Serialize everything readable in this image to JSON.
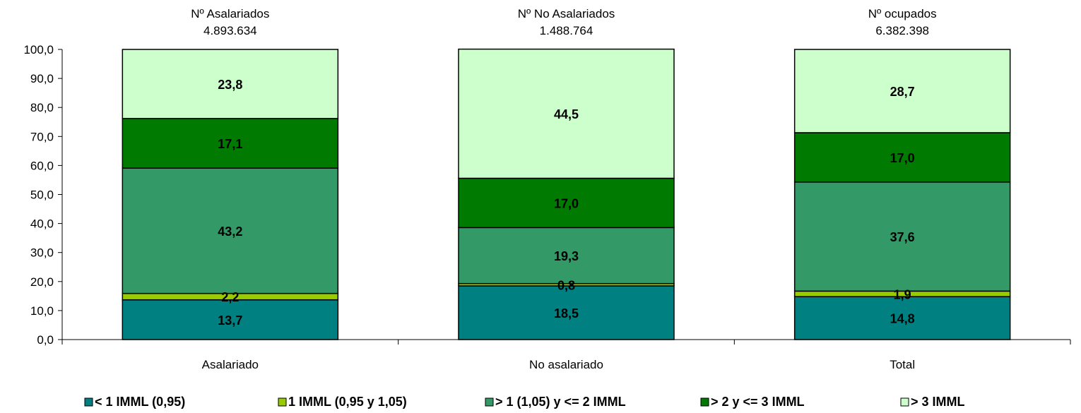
{
  "chart_data": {
    "type": "bar",
    "stacked": true,
    "categories": [
      "Asalariado",
      "No asalariado",
      "Total"
    ],
    "top_labels": [
      {
        "title": "Nº Asalariados",
        "count": "4.893.634"
      },
      {
        "title": "Nº No Asalariados",
        "count": "1.488.764"
      },
      {
        "title": "Nº ocupados",
        "count": "6.382.398"
      }
    ],
    "ylim": [
      0,
      100
    ],
    "yticks": [
      "0,0",
      "10,0",
      "20,0",
      "30,0",
      "40,0",
      "50,0",
      "60,0",
      "70,0",
      "80,0",
      "90,0",
      "100,0"
    ],
    "grid": false,
    "legend_position": "bottom",
    "series": [
      {
        "name": "< 1 IMML (0,95)",
        "color": "#008080",
        "values": [
          13.7,
          18.5,
          14.8
        ],
        "labels": [
          "13,7",
          "18,5",
          "14,8"
        ]
      },
      {
        "name": "1 IMML (0,95 y 1,05)",
        "color": "#99CC00",
        "values": [
          2.2,
          0.8,
          1.9
        ],
        "labels": [
          "2,2",
          "0,8",
          "1,9"
        ]
      },
      {
        "name": "> 1 (1,05) y <= 2 IMML",
        "color": "#339966",
        "values": [
          43.2,
          19.3,
          37.6
        ],
        "labels": [
          "43,2",
          "19,3",
          "37,6"
        ]
      },
      {
        "name": "> 2 y <= 3 IMML",
        "color": "#007A00",
        "values": [
          17.1,
          17.0,
          17.0
        ],
        "labels": [
          "17,1",
          "17,0",
          "17,0"
        ]
      },
      {
        "name": "> 3 IMML",
        "color": "#CCFFCC",
        "values": [
          23.8,
          44.5,
          28.7
        ],
        "labels": [
          "23,8",
          "44,5",
          "28,7"
        ]
      }
    ]
  }
}
